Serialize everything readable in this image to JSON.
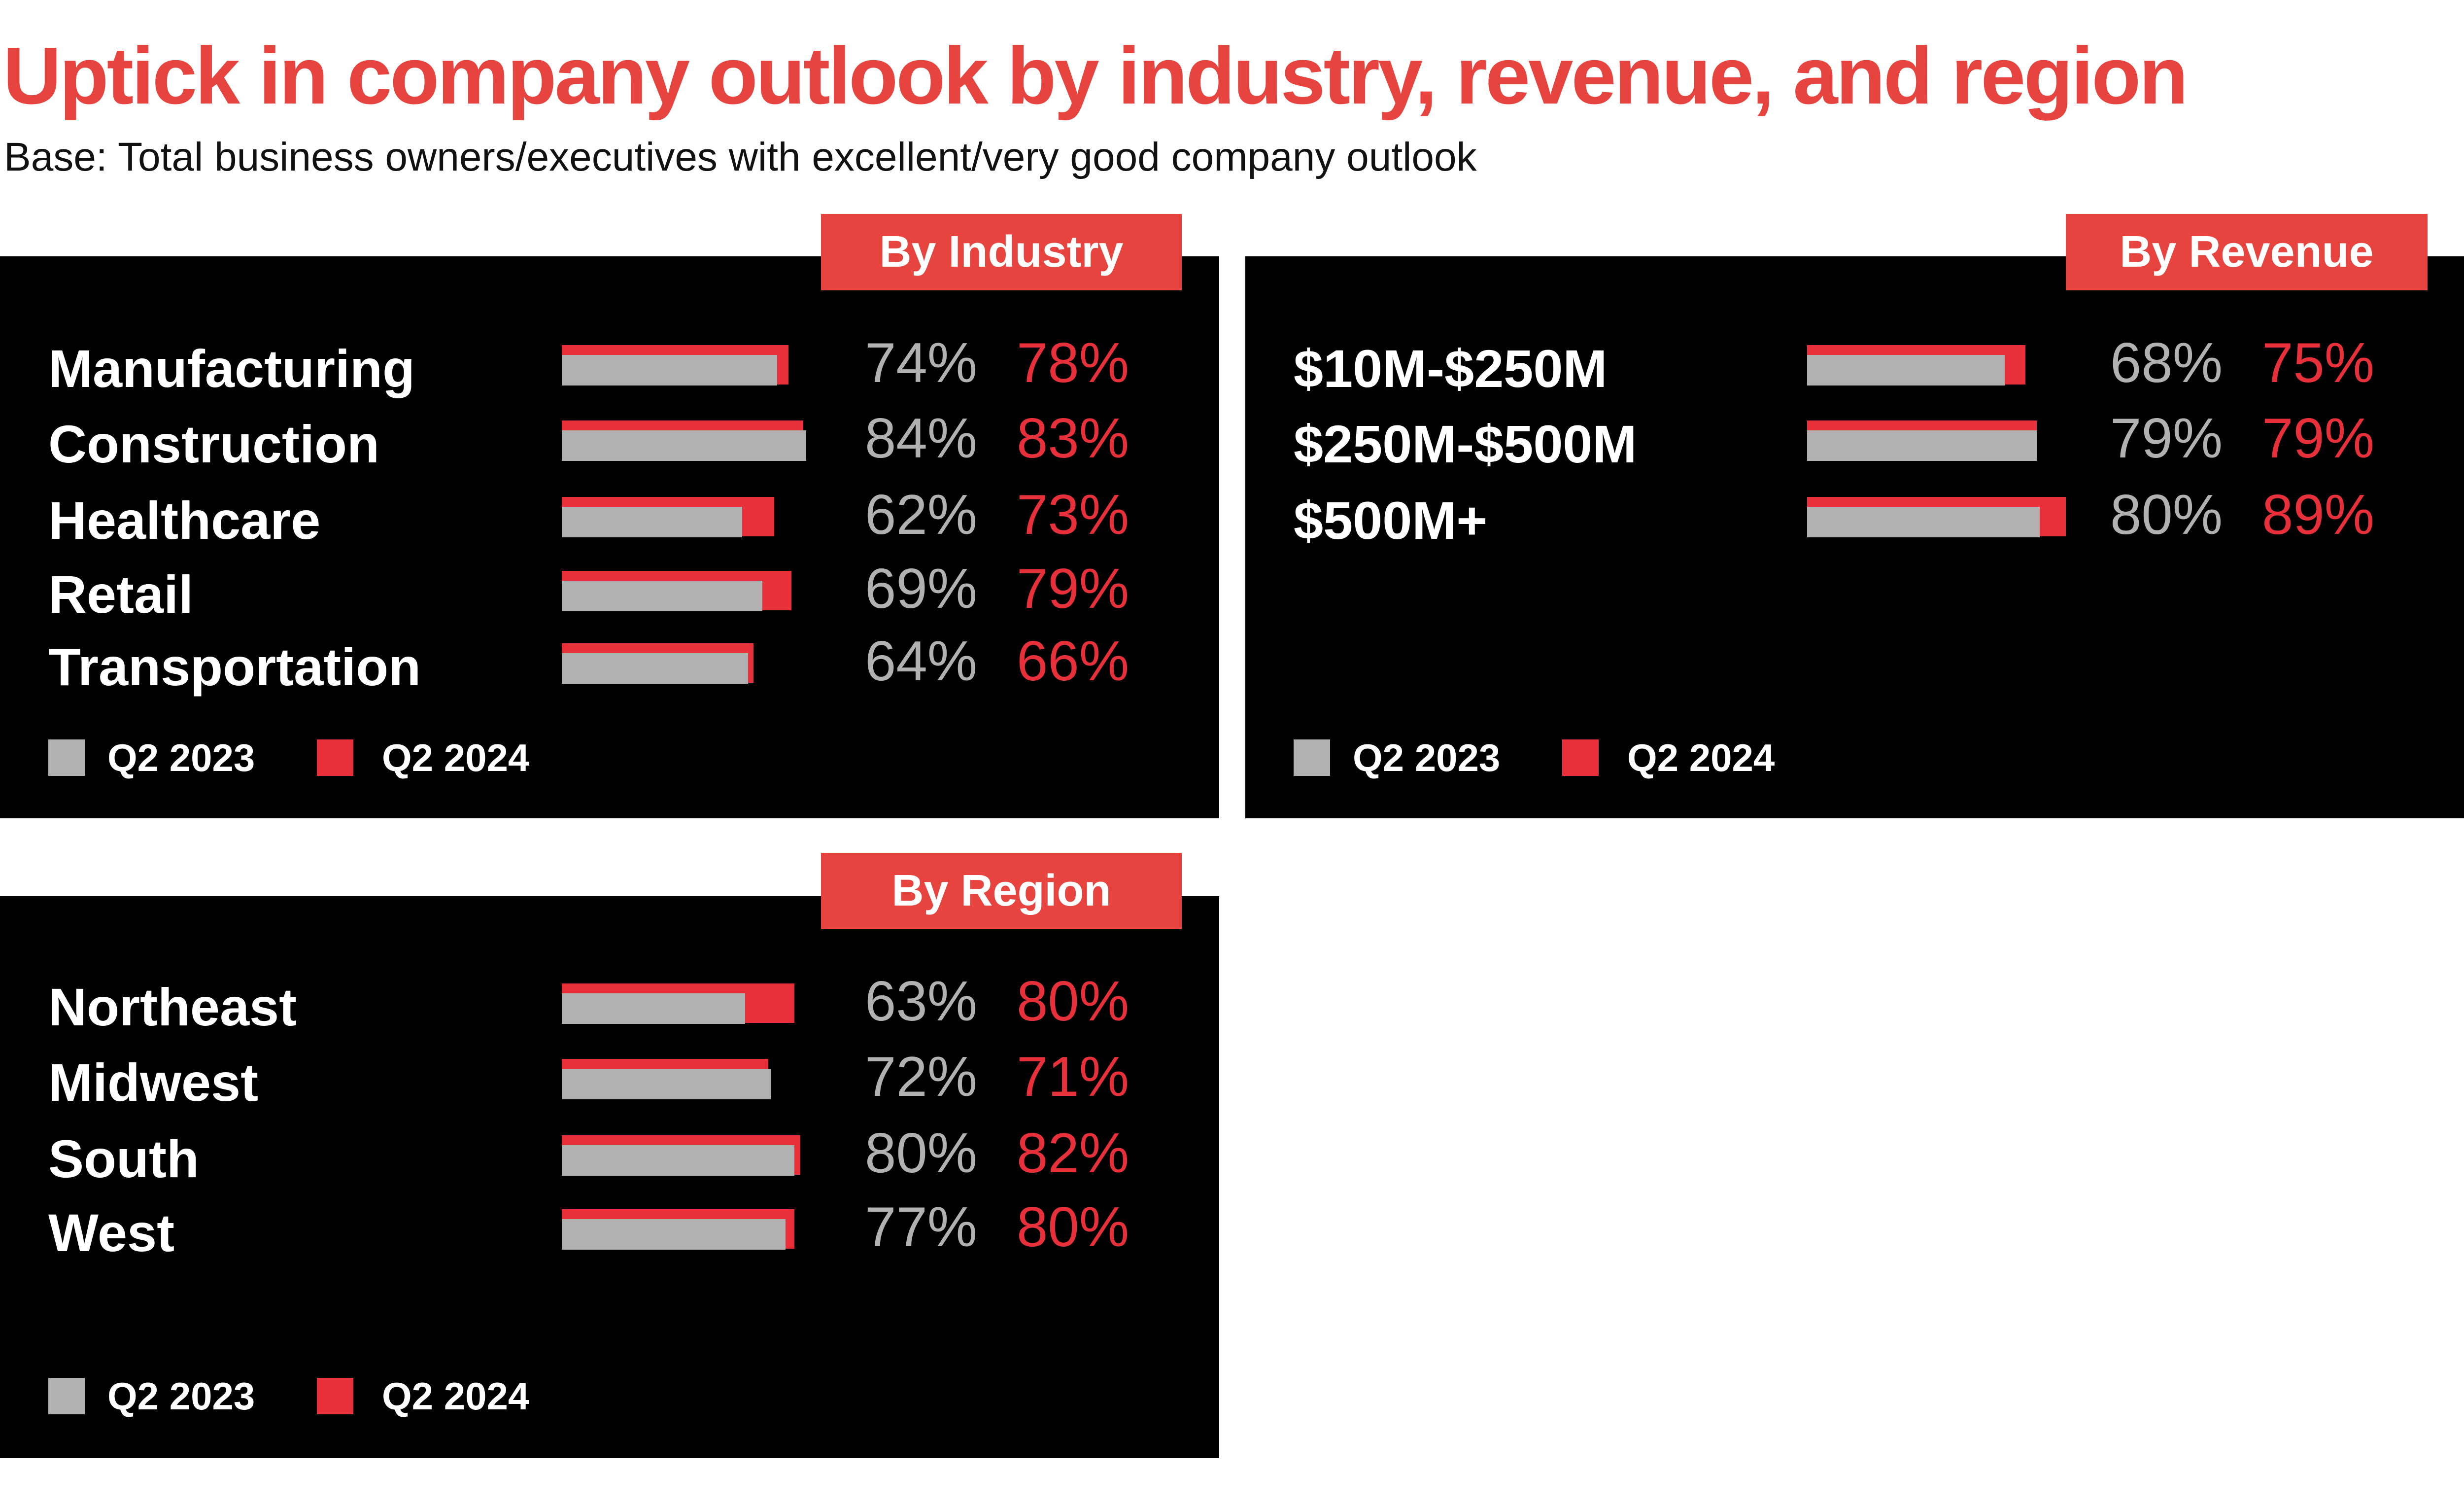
{
  "title": "Uptick in company outlook by industry, revenue, and region",
  "subtitle": "Base: Total business owners/executives with excellent/very good company outlook",
  "colors": {
    "accent": "#e8443f",
    "q2_2023": "#b1b1b1",
    "q2_2024": "#e8303a",
    "panel_bg": "#000000"
  },
  "legend": {
    "series_a": "Q2 2023",
    "series_b": "Q2 2024"
  },
  "chart_data": [
    {
      "type": "bar",
      "orientation": "horizontal",
      "title": "By Industry",
      "categories": [
        "Manufacturing",
        "Construction",
        "Healthcare",
        "Retail",
        "Transportation"
      ],
      "series": [
        {
          "name": "Q2 2023",
          "values": [
            74,
            84,
            62,
            69,
            64
          ],
          "labels": [
            "74%",
            "84%",
            "62%",
            "69%",
            "64%"
          ]
        },
        {
          "name": "Q2 2024",
          "values": [
            78,
            83,
            73,
            79,
            66
          ],
          "labels": [
            "78%",
            "83%",
            "73%",
            "79%",
            "66%"
          ]
        }
      ],
      "legend_position": "bottom-left"
    },
    {
      "type": "bar",
      "orientation": "horizontal",
      "title": "By Revenue",
      "categories": [
        "$10M-$250M",
        "$250M-$500M",
        "$500M+"
      ],
      "series": [
        {
          "name": "Q2 2023",
          "values": [
            68,
            79,
            80
          ],
          "labels": [
            "68%",
            "79%",
            "80%"
          ]
        },
        {
          "name": "Q2 2024",
          "values": [
            75,
            79,
            89
          ],
          "labels": [
            "75%",
            "79%",
            "89%"
          ]
        }
      ],
      "legend_position": "bottom-left"
    },
    {
      "type": "bar",
      "orientation": "horizontal",
      "title": "By Region",
      "categories": [
        "Northeast",
        "Midwest",
        "South",
        "West"
      ],
      "series": [
        {
          "name": "Q2 2023",
          "values": [
            63,
            72,
            80,
            77
          ],
          "labels": [
            "63%",
            "72%",
            "80%",
            "77%"
          ]
        },
        {
          "name": "Q2 2024",
          "values": [
            80,
            71,
            82,
            80
          ],
          "labels": [
            "80%",
            "71%",
            "82%",
            "80%"
          ]
        }
      ],
      "legend_position": "bottom-left"
    }
  ]
}
